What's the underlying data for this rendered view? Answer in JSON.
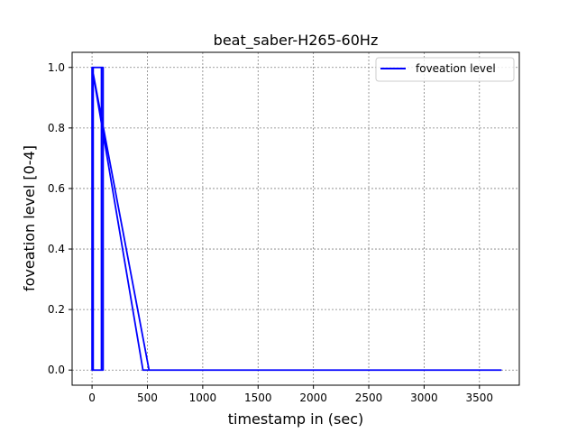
{
  "chart_data": {
    "type": "line",
    "title": "beat_saber-H265-60Hz",
    "xlabel": "timestamp in (sec)",
    "ylabel": "foveation level [0-4]",
    "xlim": [
      -180,
      3860
    ],
    "ylim": [
      -0.05,
      1.05
    ],
    "xticks": [
      0,
      500,
      1000,
      1500,
      2000,
      2500,
      3000,
      3500
    ],
    "xtick_labels": [
      "0",
      "500",
      "1000",
      "1500",
      "2000",
      "2500",
      "3000",
      "3500"
    ],
    "yticks": [
      0.0,
      0.2,
      0.4,
      0.6,
      0.8,
      1.0
    ],
    "ytick_labels": [
      "0.0",
      "0.2",
      "0.4",
      "0.6",
      "0.8",
      "1.0"
    ],
    "grid": true,
    "legend_position": "top-right",
    "series": [
      {
        "name": "foveation level",
        "color": "#0000ff",
        "x": [
          0,
          0,
          10,
          10,
          0,
          0,
          85,
          85,
          100,
          100,
          85,
          85,
          0,
          0,
          0,
          515,
          515,
          0,
          0,
          460,
          460,
          515,
          515,
          3700
        ],
        "y": [
          0,
          1,
          1,
          0,
          0,
          1,
          1,
          0,
          0,
          1,
          1,
          0,
          0,
          1,
          1,
          0,
          0,
          1,
          1,
          0,
          0,
          0,
          0,
          0
        ]
      }
    ]
  }
}
